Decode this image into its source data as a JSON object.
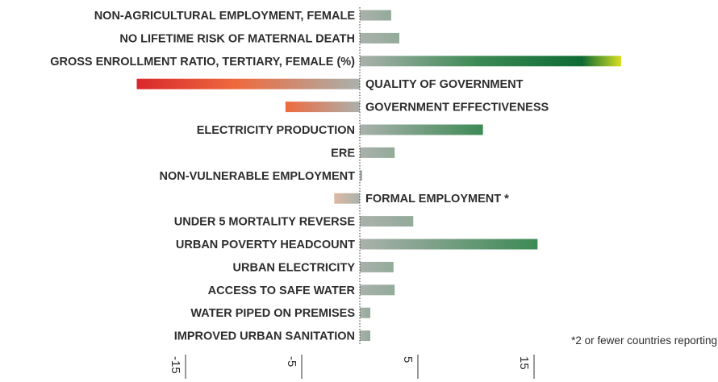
{
  "chart_data": {
    "type": "bar",
    "orientation": "horizontal",
    "categories": [
      "NON-AGRICULTURAL EMPLOYMENT, FEMALE",
      "NO LIFETIME RISK OF MATERNAL DEATH",
      "GROSS ENROLLMENT RATIO, TERTIARY, FEMALE (%)",
      "QUALITY OF GOVERNMENT",
      "GOVERNMENT EFFECTIVENESS",
      "ELECTRICITY PRODUCTION",
      "ERE",
      "NON-VULNERABLE EMPLOYMENT",
      "FORMAL EMPLOYMENT *",
      "UNDER 5 MORTALITY REVERSE",
      "URBAN POVERTY HEADCOUNT",
      "URBAN ELECTRICITY",
      "ACCESS TO SAFE WATER",
      "WATER PIPED ON PREMISES",
      "IMPROVED URBAN SANITATION"
    ],
    "values": [
      2.7,
      3.4,
      22.5,
      -19.2,
      -6.4,
      10.6,
      3.0,
      0.2,
      -2.2,
      4.6,
      15.3,
      2.9,
      3.0,
      0.9,
      0.9
    ],
    "xticks": [
      -15,
      -5,
      5,
      15
    ],
    "xlim": [
      -31,
      31
    ],
    "grid": false,
    "colors": {
      "neutral": "#aab1ac",
      "positive_mid": "#3d8a55",
      "positive_deep": "#0d6b33",
      "positive_tip": "#d8e021",
      "negative_mid": "#ee6a3e",
      "negative_tip": "#d9282c",
      "negative_light": "#dcb9a4",
      "axis": "#333333"
    },
    "footnote": "*2 or fewer countries reporting"
  }
}
